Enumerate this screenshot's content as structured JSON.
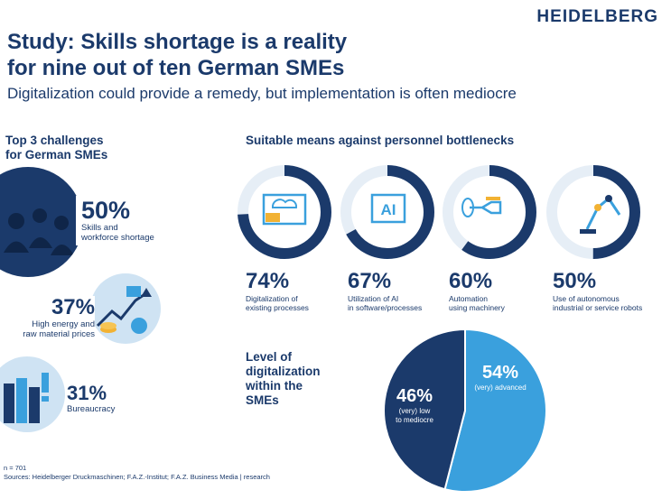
{
  "brand": "HEIDELBERG",
  "title_line1": "Study: Skills shortage is a reality",
  "title_line2": "for nine out of ten German SMEs",
  "subtitle": "Digitalization could provide a remedy, but implementation is often mediocre",
  "left_section": {
    "title_line1": "Top 3 challenges",
    "title_line2": "for German SMEs",
    "items": [
      {
        "value": "50%",
        "label_line1": "Skills and",
        "label_line2": "workforce shortage",
        "icon": "workers-icon"
      },
      {
        "value": "37%",
        "label_line1": "High energy and",
        "label_line2": "raw material prices",
        "icon": "rising-prices-icon"
      },
      {
        "value": "31%",
        "label_line1": "Bureaucracy",
        "label_line2": "",
        "icon": "file-folders-icon"
      }
    ]
  },
  "right_section": {
    "title": "Suitable means against personnel bottlenecks"
  },
  "chart_data": [
    {
      "type": "donut",
      "title": "Suitable means against personnel bottlenecks",
      "items": [
        {
          "value": 74,
          "label": "74%",
          "caption_line1": "Digitalization of",
          "caption_line2": "existing processes",
          "icon": "monitor-cloud-icon"
        },
        {
          "value": 67,
          "label": "67%",
          "caption_line1": "Utilization of AI",
          "caption_line2": "in software/processes",
          "icon": "ai-chip-icon"
        },
        {
          "value": 60,
          "label": "60%",
          "caption_line1": "Automation",
          "caption_line2": "using machinery",
          "icon": "machine-icon"
        },
        {
          "value": 50,
          "label": "50%",
          "caption_line1": "Use of autonomous",
          "caption_line2": "industrial or service robots",
          "icon": "robot-arm-icon"
        }
      ],
      "colors": {
        "fill": "#1b3a6b",
        "track": "#ffffff"
      }
    },
    {
      "type": "pie",
      "title_lines": [
        "Level of",
        "digitalization",
        "within the",
        "SMEs"
      ],
      "slices": [
        {
          "value": 54,
          "label": "54%",
          "caption_line1": "(very) advanced",
          "caption_line2": "",
          "color": "#3aa0dd"
        },
        {
          "value": 46,
          "label": "46%",
          "caption_line1": "(very) low",
          "caption_line2": "to mediocre",
          "color": "#1b3a6b"
        }
      ]
    }
  ],
  "footer": {
    "n": "n = 701",
    "sources": "Sources: Heidelberger Druckmaschinen; F.A.Z.-Institut; F.A.Z. Business Media | research"
  },
  "colors": {
    "navy": "#1b3a6b",
    "light_blue": "#3aa0dd",
    "pale_blue": "#cfe3f3"
  }
}
